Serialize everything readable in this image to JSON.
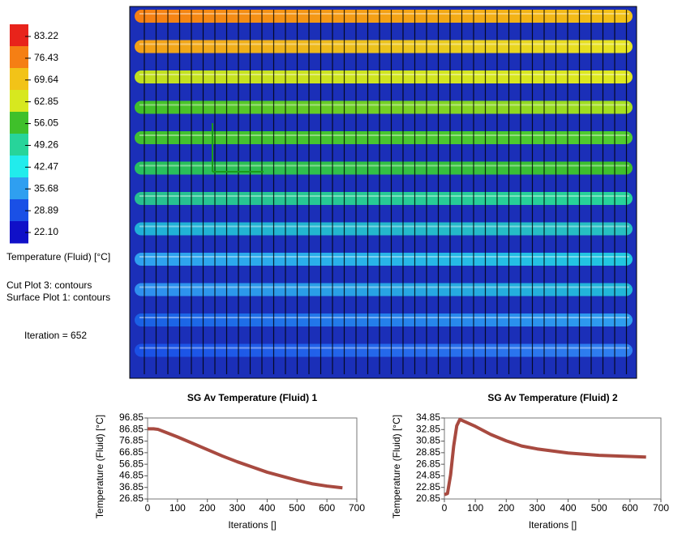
{
  "legend": {
    "ticks": [
      83.22,
      76.43,
      69.64,
      62.85,
      56.05,
      49.26,
      42.47,
      35.68,
      28.89,
      {
        "value": 22.1,
        "label": "22.10"
      }
    ],
    "colors": [
      "#e8231b",
      "#f57f14",
      "#f2c318",
      "#d7e81f",
      "#3fc02a",
      "#27d49a",
      "#21ecec",
      "#2f9ff0",
      "#1a50e6",
      "#1010c8"
    ],
    "title": "Temperature (Fluid) [°C]"
  },
  "notes": [
    "Cut Plot 3: contours",
    "Surface Plot 1: contours"
  ],
  "iteration": "Iteration = 652",
  "chart_data": [
    {
      "type": "line",
      "title": "SG Av Temperature (Fluid) 1",
      "x_label": "Iterations []",
      "y_label": "Temperature (Fluid) [°C]",
      "x": [
        0,
        20,
        35,
        60,
        100,
        150,
        200,
        250,
        300,
        350,
        400,
        450,
        500,
        550,
        600,
        652
      ],
      "y": [
        87.5,
        87.5,
        87,
        84.5,
        80.5,
        75,
        69.5,
        64,
        59,
        54.5,
        50,
        46.5,
        43,
        40,
        38,
        36.5
      ],
      "color": "#a84a40",
      "xlim": [
        0,
        700
      ],
      "xticks": [
        0,
        100,
        200,
        300,
        400,
        500,
        600,
        700
      ],
      "ylim": [
        26.85,
        96.85
      ],
      "yticks": [
        26.85,
        36.85,
        46.85,
        56.85,
        66.85,
        76.85,
        86.85,
        96.85
      ]
    },
    {
      "type": "line",
      "title": "SG Av Temperature (Fluid) 2",
      "x_label": "Iterations []",
      "y_label": "Temperature (Fluid) [°C]",
      "x": [
        0,
        10,
        20,
        30,
        40,
        50,
        100,
        150,
        200,
        250,
        300,
        400,
        500,
        600,
        652
      ],
      "y": [
        21.6,
        21.8,
        25,
        30,
        33.5,
        34.6,
        33.4,
        32,
        30.9,
        30,
        29.5,
        28.8,
        28.4,
        28.2,
        28.1
      ],
      "color": "#a84a40",
      "xlim": [
        0,
        700
      ],
      "xticks": [
        0,
        100,
        200,
        300,
        400,
        500,
        600,
        700
      ],
      "ylim": [
        20.85,
        34.85
      ],
      "yticks": [
        20.85,
        22.85,
        24.85,
        26.85,
        28.85,
        30.85,
        32.85,
        34.85
      ]
    }
  ]
}
